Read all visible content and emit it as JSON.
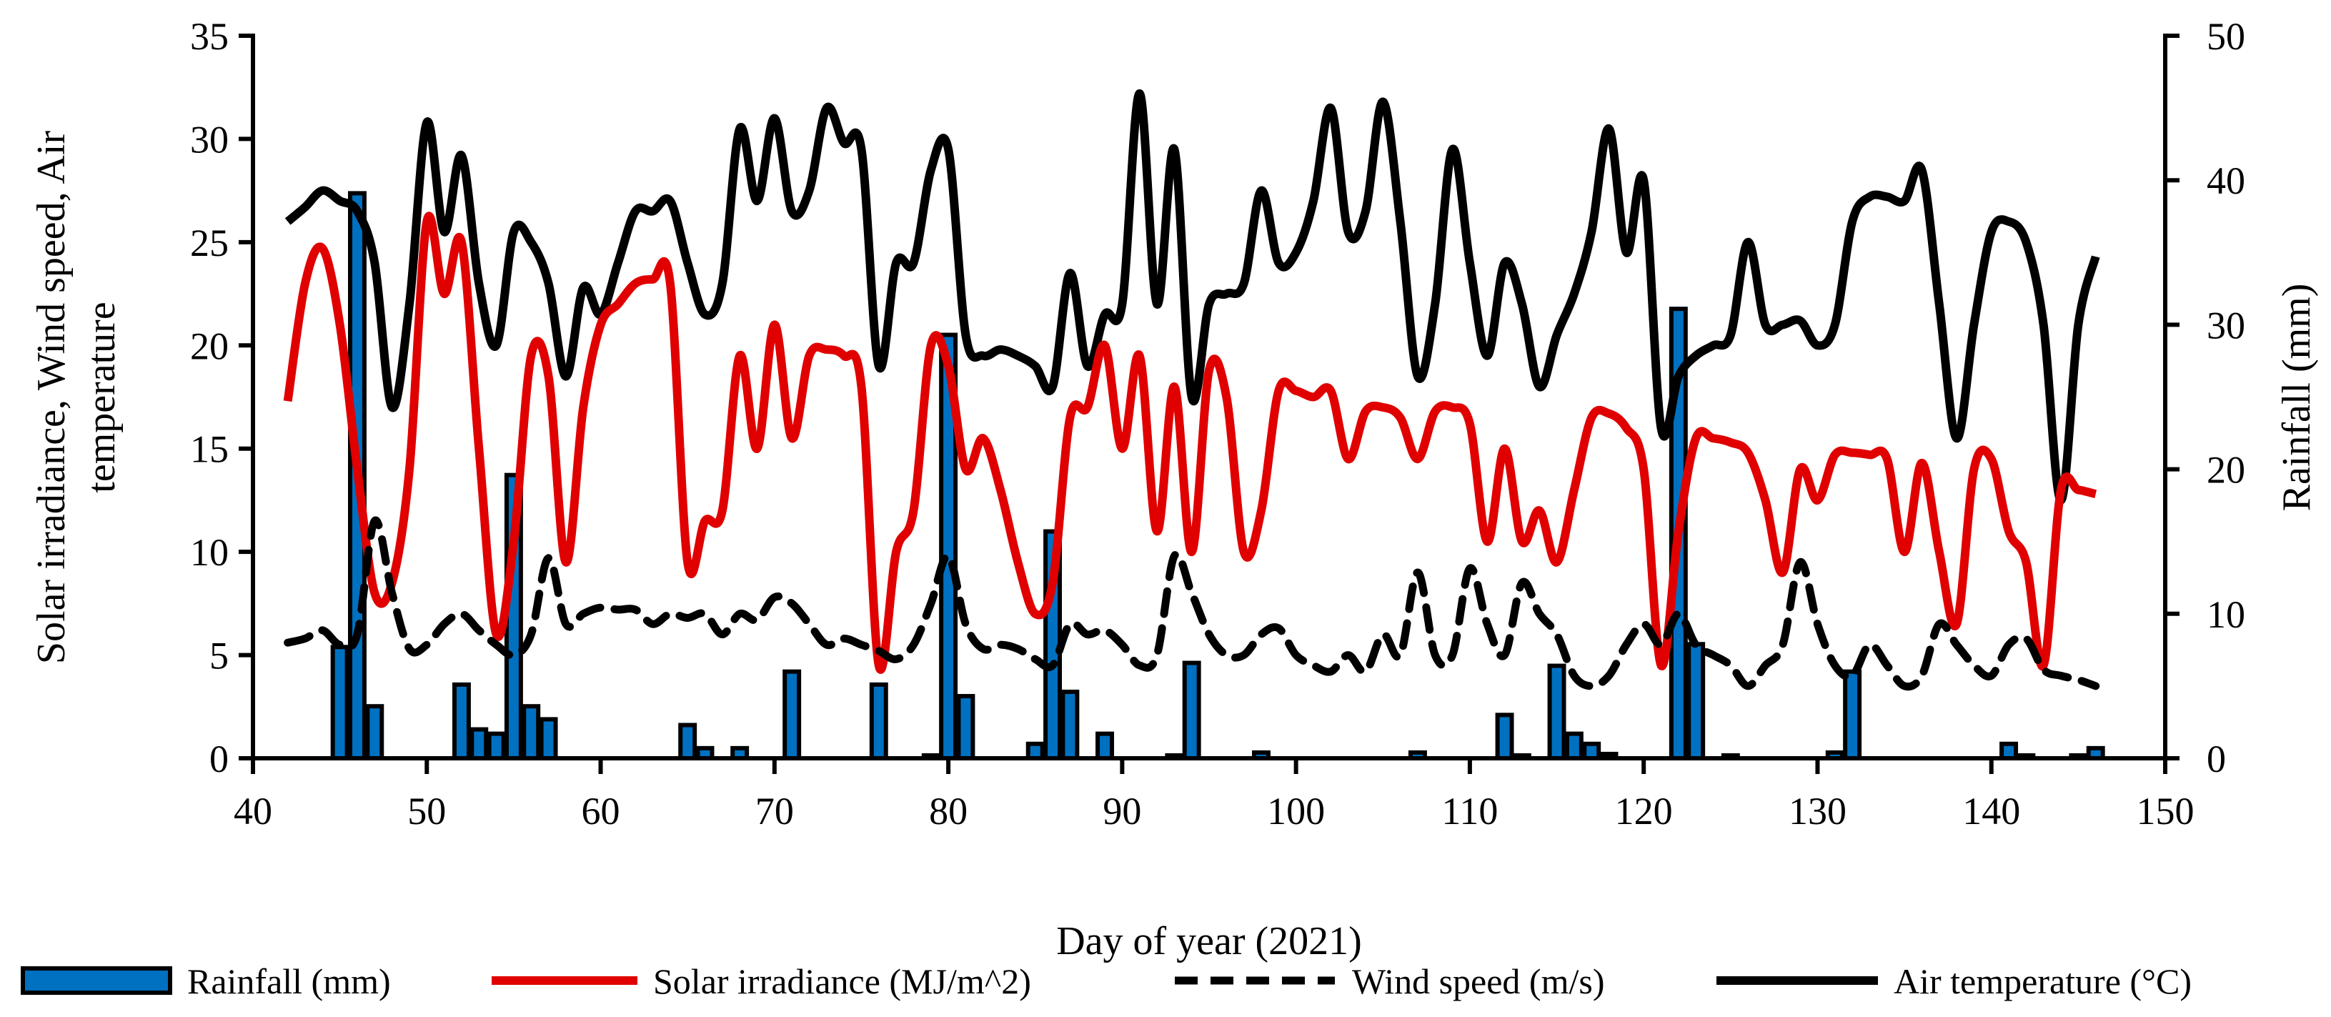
{
  "chart_data": {
    "type": "bar+line",
    "xlabel": "Day of year (2021)",
    "ylabel_left": [
      "Solar irradiance, Wind speed, Air",
      "temperature"
    ],
    "ylabel_right": "Rainfall (mm)",
    "xlim": [
      40,
      150
    ],
    "ylim_left": [
      0,
      35
    ],
    "ylim_right": [
      0,
      50
    ],
    "x_ticks": [
      "40",
      "50",
      "60",
      "70",
      "80",
      "90",
      "100",
      "110",
      "120",
      "130",
      "140",
      "150"
    ],
    "y_ticks_left": [
      "0",
      "5",
      "10",
      "15",
      "20",
      "25",
      "30",
      "35"
    ],
    "y_ticks_right": [
      "0",
      "10",
      "20",
      "30",
      "40",
      "50"
    ],
    "grid": false,
    "legend_position": "bottom",
    "legend": [
      {
        "label": "Rainfall (mm)",
        "style": "bar",
        "color": "#0070C0"
      },
      {
        "label": "Solar irradiance (MJ/m^2)",
        "style": "solid",
        "color": "#E00000"
      },
      {
        "label": "Wind speed (m/s)",
        "style": "dashed",
        "color": "#000000"
      },
      {
        "label": "Air temperature (°C)",
        "style": "solid",
        "color": "#000000"
      }
    ],
    "rainfall": {
      "axis": "right",
      "days": [
        45,
        46,
        47,
        52,
        53,
        54,
        55,
        56,
        57,
        65,
        66,
        68,
        71,
        76,
        79,
        80,
        81,
        85,
        86,
        87,
        89,
        93,
        94,
        98,
        107,
        112,
        113,
        115,
        116,
        117,
        118,
        122,
        123,
        125,
        131,
        132,
        141,
        142,
        145,
        146
      ],
      "values": [
        7.7,
        39.1,
        3.6,
        5.1,
        2.0,
        1.7,
        19.6,
        3.6,
        2.7,
        2.3,
        0.7,
        0.7,
        6.0,
        5.1,
        0.2,
        29.3,
        4.3,
        1.0,
        15.7,
        4.6,
        1.7,
        0.2,
        6.6,
        0.4,
        0.4,
        3.0,
        0.2,
        6.4,
        1.7,
        1.0,
        0.3,
        31.1,
        7.9,
        0.2,
        0.4,
        6.0,
        1.0,
        0.2,
        0.2,
        0.7
      ]
    },
    "series_start_day": 42,
    "solar_irradiance": [
      17.3,
      23,
      24.7,
      21,
      14,
      8,
      8.5,
      14,
      26,
      22.5,
      25,
      15,
      6,
      10.5,
      19.5,
      18.5,
      9.5,
      17,
      21,
      22,
      23,
      23.2,
      23,
      9.5,
      11.5,
      12,
      19.5,
      15,
      21,
      15.5,
      19.5,
      19.8,
      19.5,
      18,
      4.5,
      10,
      12,
      20,
      19,
      14,
      15.5,
      13,
      9.5,
      7,
      8.5,
      16.5,
      17,
      20,
      15,
      19.5,
      11,
      18,
      10,
      18.8,
      17.5,
      10,
      12,
      17.8,
      17.8,
      17.5,
      17.8,
      14.5,
      16.8,
      17,
      16.5,
      14.5,
      16.8,
      17,
      16.2,
      10.5,
      15,
      10.5,
      12,
      9.5,
      13,
      16.5,
      16.7,
      16,
      14,
      4.5,
      11,
      15.5,
      15.5,
      15.3,
      14.8,
      12.5,
      9,
      14,
      12.5,
      14.7,
      14.8,
      14.7,
      14.5,
      10,
      14.3,
      10,
      6.5,
      14,
      14.5,
      11,
      9.5,
      4.5,
      13,
      13,
      12.8
    ],
    "wind_speed": [
      5.6,
      5.8,
      6.2,
      5.5,
      6,
      11.5,
      8,
      5.3,
      5.5,
      6.5,
      7,
      6.2,
      5.5,
      5,
      6,
      9.7,
      6.5,
      7,
      7.3,
      7.2,
      7.2,
      6.5,
      7,
      6.8,
      7,
      6,
      7,
      6.7,
      7.8,
      7.5,
      6.5,
      5.5,
      5.8,
      5.5,
      5.2,
      4.8,
      5.5,
      7.5,
      9.8,
      6.5,
      5.3,
      5.5,
      5.3,
      4.8,
      4.5,
      6.5,
      6,
      6.2,
      5.5,
      4.5,
      5,
      9.8,
      8,
      6,
      5,
      5,
      6,
      6.3,
      5,
      4.5,
      4.2,
      5,
      4.2,
      6,
      5,
      9,
      5,
      5,
      9.2,
      6.5,
      5,
      8.5,
      7,
      6,
      4,
      3.5,
      4,
      5.5,
      6.5,
      5.5,
      7,
      5.5,
      5,
      4.5,
      3.5,
      4.5,
      5.5,
      9.5,
      6.5,
      4.5,
      4,
      5.5,
      4.5,
      3.5,
      4,
      6.5,
      5.5,
      4.5,
      4,
      5.5,
      5.8,
      4.3,
      4,
      3.8,
      3.5
    ],
    "air_temperature": [
      26,
      26.7,
      27.5,
      27,
      26.5,
      24,
      17,
      22,
      30.8,
      25.5,
      29.2,
      23,
      20,
      25.5,
      25,
      23,
      18.5,
      22.8,
      21.5,
      24,
      26.5,
      26.5,
      27,
      24,
      21.5,
      23,
      30.5,
      27,
      31,
      26.5,
      27.5,
      31.5,
      29.8,
      29.5,
      19,
      24,
      24,
      28.5,
      29.5,
      20.5,
      19.5,
      19.8,
      19.5,
      19,
      18,
      23.5,
      19,
      21.5,
      22,
      32.2,
      22,
      29.5,
      17.5,
      22,
      22.5,
      23,
      27.5,
      24,
      24.5,
      27,
      31.5,
      25.5,
      26.5,
      31.8,
      26,
      18.5,
      22,
      29.5,
      24,
      19.5,
      24,
      22,
      18,
      20.5,
      22.5,
      25.5,
      30.5,
      24.5,
      28,
      16,
      18.5,
      19.5,
      20,
      20.5,
      25,
      21,
      21,
      21.2,
      20,
      21,
      26,
      27.2,
      27.2,
      27,
      28.5,
      22,
      15.5,
      21,
      25.5,
      26,
      25,
      21,
      12.5,
      21,
      24.3
    ]
  }
}
